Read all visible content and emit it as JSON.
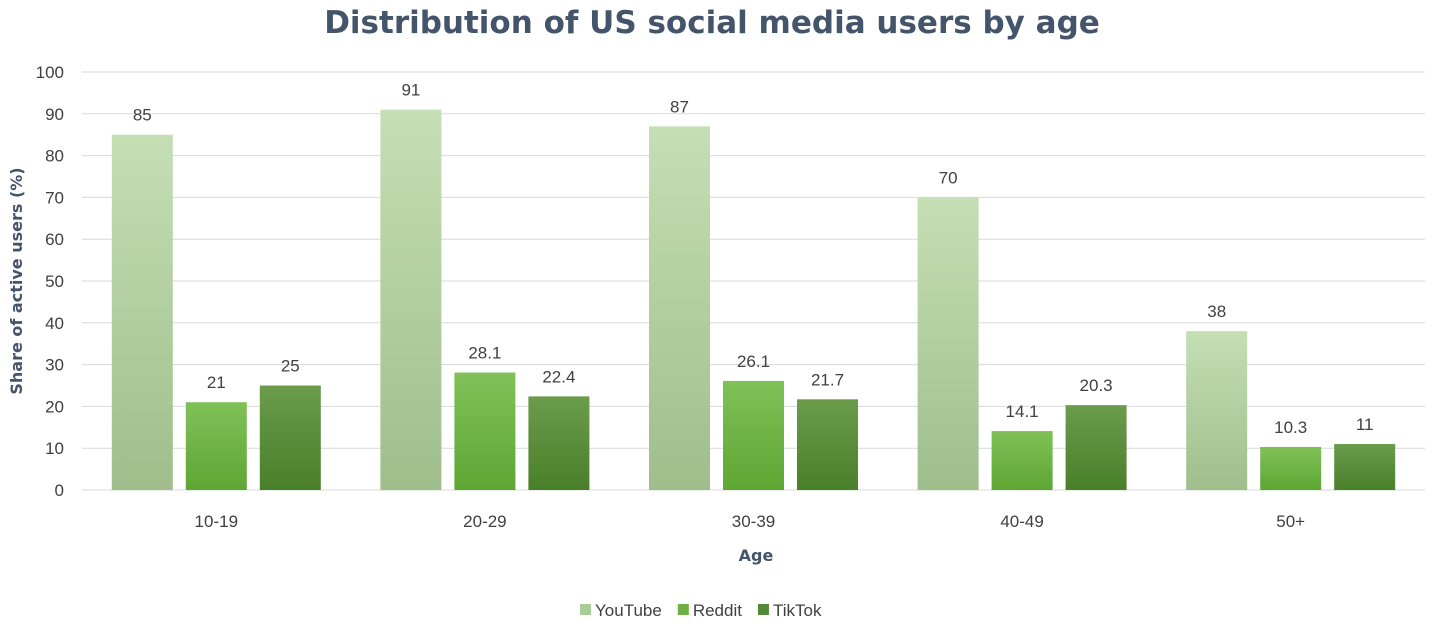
{
  "chart_data": {
    "type": "bar",
    "title": "Distribution of US social media users by age",
    "xlabel": "Age",
    "ylabel": "Share  of active users (%)",
    "ylim": [
      0,
      100
    ],
    "yticks": [
      0,
      10,
      20,
      30,
      40,
      50,
      60,
      70,
      80,
      90,
      100
    ],
    "grid": true,
    "legend_position": "bottom",
    "categories": [
      "10-19",
      "20-29",
      "30-39",
      "40-49",
      "50+"
    ],
    "series": [
      {
        "name": "YouTube",
        "values": [
          85,
          91,
          87,
          70,
          38
        ],
        "labels": [
          "85",
          "91",
          "87",
          "70",
          "38"
        ],
        "color": "#a9cd97"
      },
      {
        "name": "Reddit",
        "values": [
          21,
          28.1,
          26.1,
          14.1,
          10.3
        ],
        "labels": [
          "21",
          "28.1",
          "26.1",
          "14.1",
          "10.3"
        ],
        "color": "#6fb044"
      },
      {
        "name": "TikTok",
        "values": [
          25,
          22.4,
          21.7,
          20.3,
          11
        ],
        "labels": [
          "25",
          "22.4",
          "21.7",
          "20.3",
          "11"
        ],
        "color": "#55893a"
      }
    ]
  }
}
